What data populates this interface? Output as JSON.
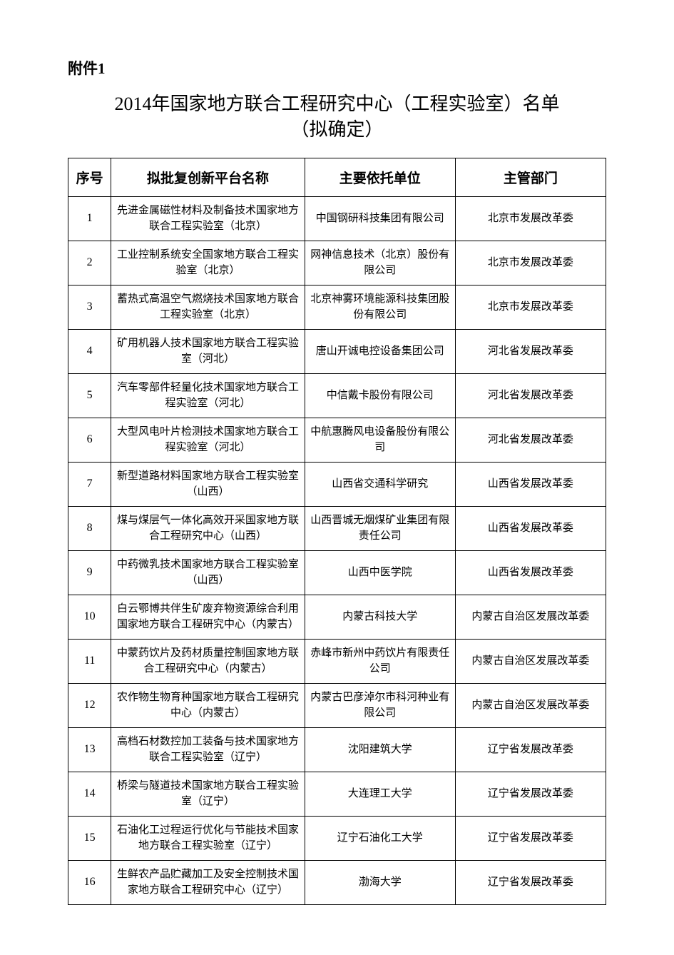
{
  "attachment_label": "附件1",
  "title_line1": "2014年国家地方联合工程研究中心（工程实验室）名单",
  "title_line2": "（拟确定）",
  "table": {
    "columns": [
      "序号",
      "拟批复创新平台名称",
      "主要依托单位",
      "主管部门"
    ],
    "column_widths_percent": [
      8,
      36,
      28,
      28
    ],
    "header_fontsize": 19,
    "cell_fontsize": 15,
    "border_color": "#000000",
    "background_color": "#ffffff",
    "rows": [
      {
        "seq": "1",
        "name": "先进金属磁性材料及制备技术国家地方联合工程实验室（北京）",
        "unit": "中国钢研科技集团有限公司",
        "dept": "北京市发展改革委"
      },
      {
        "seq": "2",
        "name": "工业控制系统安全国家地方联合工程实验室（北京）",
        "unit": "网神信息技术（北京）股份有限公司",
        "dept": "北京市发展改革委"
      },
      {
        "seq": "3",
        "name": "蓄热式高温空气燃烧技术国家地方联合工程实验室（北京）",
        "unit": "北京神雾环境能源科技集团股份有限公司",
        "dept": "北京市发展改革委"
      },
      {
        "seq": "4",
        "name": "矿用机器人技术国家地方联合工程实验室（河北）",
        "unit": "唐山开诚电控设备集团公司",
        "dept": "河北省发展改革委"
      },
      {
        "seq": "5",
        "name": "汽车零部件轻量化技术国家地方联合工程实验室（河北）",
        "unit": "中信戴卡股份有限公司",
        "dept": "河北省发展改革委"
      },
      {
        "seq": "6",
        "name": "大型风电叶片检测技术国家地方联合工程实验室（河北）",
        "unit": "中航惠腾风电设备股份有限公司",
        "dept": "河北省发展改革委"
      },
      {
        "seq": "7",
        "name": "新型道路材料国家地方联合工程实验室（山西）",
        "unit": "山西省交通科学研究",
        "dept": "山西省发展改革委"
      },
      {
        "seq": "8",
        "name": "煤与煤层气一体化高效开采国家地方联合工程研究中心（山西）",
        "unit": "山西晋城无烟煤矿业集团有限责任公司",
        "dept": "山西省发展改革委"
      },
      {
        "seq": "9",
        "name": "中药微乳技术国家地方联合工程实验室（山西）",
        "unit": "山西中医学院",
        "dept": "山西省发展改革委"
      },
      {
        "seq": "10",
        "name": "白云鄂博共伴生矿废弃物资源综合利用国家地方联合工程研究中心（内蒙古）",
        "unit": "内蒙古科技大学",
        "dept": "内蒙古自治区发展改革委"
      },
      {
        "seq": "11",
        "name": "中蒙药饮片及药材质量控制国家地方联合工程研究中心（内蒙古）",
        "unit": "赤峰市新州中药饮片有限责任公司",
        "dept": "内蒙古自治区发展改革委"
      },
      {
        "seq": "12",
        "name": "农作物生物育种国家地方联合工程研究中心（内蒙古）",
        "unit": "内蒙古巴彦淖尔市科河种业有限公司",
        "dept": "内蒙古自治区发展改革委"
      },
      {
        "seq": "13",
        "name": "高档石材数控加工装备与技术国家地方联合工程实验室（辽宁）",
        "unit": "沈阳建筑大学",
        "dept": "辽宁省发展改革委"
      },
      {
        "seq": "14",
        "name": "桥梁与隧道技术国家地方联合工程实验室（辽宁）",
        "unit": "大连理工大学",
        "dept": "辽宁省发展改革委"
      },
      {
        "seq": "15",
        "name": "石油化工过程运行优化与节能技术国家地方联合工程实验室（辽宁）",
        "unit": "辽宁石油化工大学",
        "dept": "辽宁省发展改革委"
      },
      {
        "seq": "16",
        "name": "生鲜农产品贮藏加工及安全控制技术国家地方联合工程研究中心（辽宁）",
        "unit": "渤海大学",
        "dept": "辽宁省发展改革委"
      }
    ]
  },
  "typography": {
    "attachment_label_fontsize": 21,
    "title_fontsize": 26,
    "font_family": "SimSun",
    "text_color": "#000000"
  }
}
